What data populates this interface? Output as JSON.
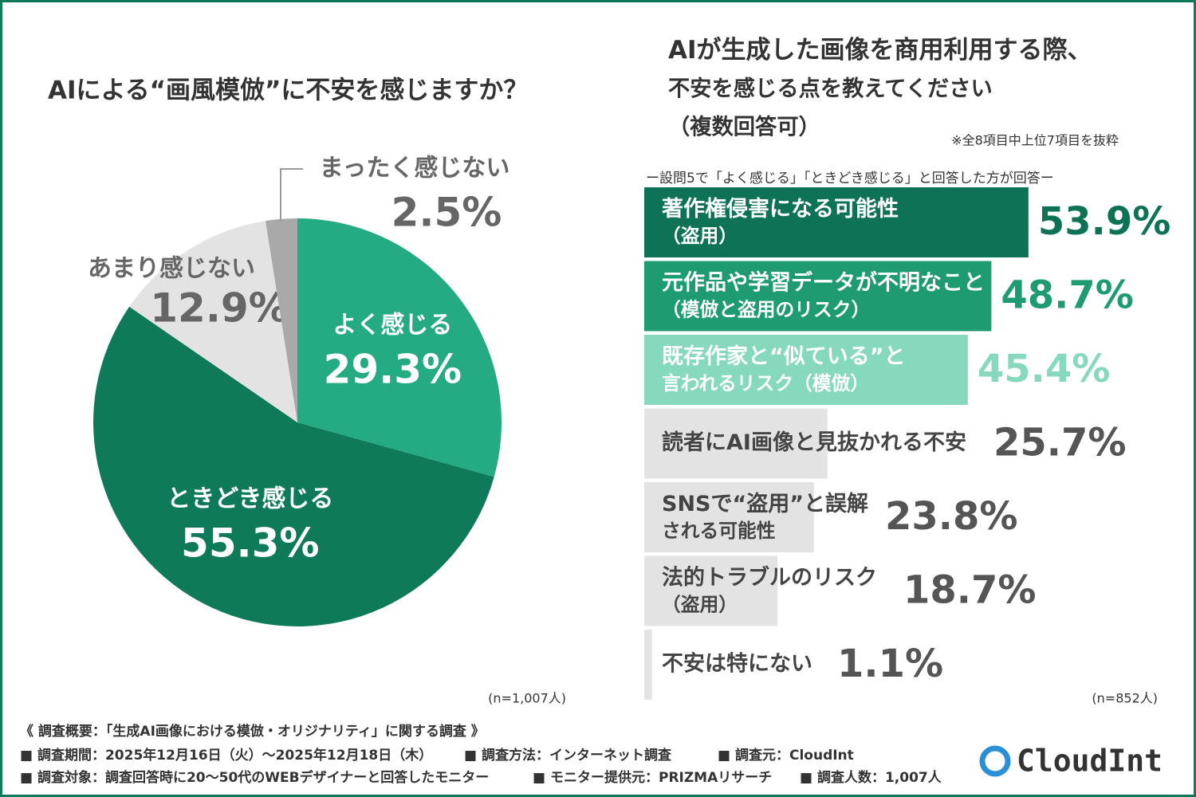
{
  "chart_data": [
    {
      "type": "pie",
      "title": "AIによる“画風模倣”に不安を感じますか？",
      "categories": [
        "よく感じる",
        "ときどき感じる",
        "あまり感じない",
        "まったく感じない"
      ],
      "values": [
        29.3,
        55.3,
        12.9,
        2.5
      ],
      "value_labels": [
        "29.3%",
        "55.3%",
        "12.9%",
        "2.5%"
      ],
      "colors": [
        "#24ab84",
        "#0e7a5a",
        "#e3e3e3",
        "#a9a9a9"
      ],
      "note": "(n=1,007人)"
    },
    {
      "type": "barh",
      "title": "AIが生成した画像を商用利用する際、\n不安を感じる点を教えてください\n（複数回答可）",
      "subtitle": "※全8項目中上位7項目を抜粋",
      "caption": "ー設問5で「よく感じる」「ときどき感じる」と回答した方が回答ー",
      "categories": [
        "著作権侵害になる可能性\n（盗用）",
        "元作品や学習データが不明なこと\n（模倣と盗用のリスク）",
        "既存作家と“似ている”と\n言われるリスク（模倣）",
        "読者にAI画像と見抜かれる不安",
        "SNSで“盗用”と誤解\nされる可能性",
        "法的トラブルのリスク\n（盗用）",
        "不安は特にない"
      ],
      "values": [
        53.9,
        48.7,
        45.4,
        25.7,
        23.8,
        18.7,
        1.1
      ],
      "value_labels": [
        "53.9%",
        "48.7%",
        "45.4%",
        "25.7%",
        "23.8%",
        "18.7%",
        "1.1%"
      ],
      "colors": [
        "#0e7257",
        "#1f9b72",
        "#86d9bd",
        "#e3e3e3",
        "#e3e3e3",
        "#e3e3e3",
        "#e3e3e3"
      ],
      "xlim": [
        0,
        100
      ],
      "note": "(n=852人)"
    }
  ],
  "footer": {
    "heading": "《 調査概要：「生成AI画像における模倣・オリジナリティ」に関する調査 》",
    "items": [
      "■ 調査期間：2025年12月16日（火）～2025年12月18日（木）",
      "■ 調査方法：インターネット調査",
      "■ 調査元：CloudInt",
      "■ 調査対象：調査回答時に20～50代のWEBデザイナーと回答したモニター",
      "■ モニター提供元：PRIZMAリサーチ",
      "■ 調査人数：1,007人"
    ],
    "logo": "CloudInt"
  }
}
